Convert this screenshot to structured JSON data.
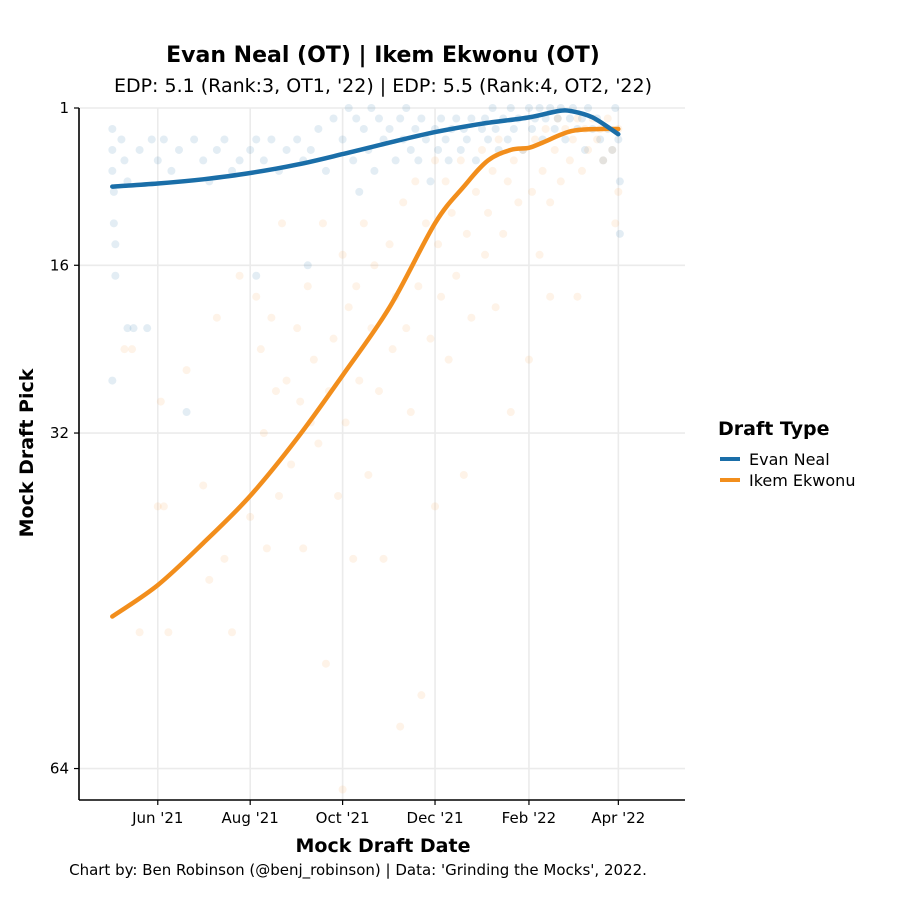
{
  "chart_data": {
    "type": "scatter",
    "title": "Evan Neal (OT) | Ikem Ekwonu (OT)",
    "subtitle": "EDP: 5.1 (Rank:3, OT1, '22) | EDP: 5.5 (Rank:4, OT2, '22)",
    "xlabel": "Mock Draft Date",
    "ylabel": "Mock Draft Pick",
    "caption": "Chart by: Ben Robinson (@benj_robinson) | Data: 'Grinding the Mocks', 2022.",
    "x_domain": [
      "2021-04-10",
      "2022-05-15"
    ],
    "ylim": [
      1,
      67
    ],
    "y_reversed": true,
    "grid": true,
    "x_ticks": [
      {
        "date": "2021-06-01",
        "label": "Jun '21"
      },
      {
        "date": "2021-08-01",
        "label": "Aug '21"
      },
      {
        "date": "2021-10-01",
        "label": "Oct '21"
      },
      {
        "date": "2021-12-01",
        "label": "Dec '21"
      },
      {
        "date": "2022-02-01",
        "label": "Feb '22"
      },
      {
        "date": "2022-04-01",
        "label": "Apr '22"
      }
    ],
    "y_ticks": [
      {
        "value": 1,
        "label": "1"
      },
      {
        "value": 16,
        "label": "16"
      },
      {
        "value": 32,
        "label": "32"
      },
      {
        "value": 64,
        "label": "64"
      }
    ],
    "legend": {
      "title": "Draft Type",
      "position": "right",
      "entries": [
        "Evan Neal",
        "Ikem Ekwonu"
      ]
    },
    "series": [
      {
        "name": "Evan Neal",
        "color": "#1a6ea8",
        "point_opacity": 0.12,
        "trend": [
          [
            "2021-05-02",
            8.5
          ],
          [
            "2021-06-01",
            8.2
          ],
          [
            "2021-07-01",
            7.8
          ],
          [
            "2021-08-01",
            7.2
          ],
          [
            "2021-09-01",
            6.4
          ],
          [
            "2021-10-01",
            5.4
          ],
          [
            "2021-11-01",
            4.3
          ],
          [
            "2021-12-01",
            3.3
          ],
          [
            "2022-01-01",
            2.5
          ],
          [
            "2022-02-01",
            1.9
          ],
          [
            "2022-02-20",
            1.3
          ],
          [
            "2022-03-01",
            1.3
          ],
          [
            "2022-03-15",
            1.9
          ],
          [
            "2022-04-01",
            3.5
          ]
        ],
        "points": [
          [
            "2021-05-02",
            3
          ],
          [
            "2021-05-02",
            5
          ],
          [
            "2021-05-02",
            7
          ],
          [
            "2021-05-03",
            9
          ],
          [
            "2021-05-03",
            12
          ],
          [
            "2021-05-04",
            14
          ],
          [
            "2021-05-04",
            17
          ],
          [
            "2021-05-02",
            27
          ],
          [
            "2021-05-08",
            4
          ],
          [
            "2021-05-10",
            6
          ],
          [
            "2021-05-12",
            8
          ],
          [
            "2021-05-12",
            22
          ],
          [
            "2021-05-16",
            22
          ],
          [
            "2021-05-20",
            5
          ],
          [
            "2021-05-25",
            22
          ],
          [
            "2021-05-28",
            4
          ],
          [
            "2021-06-01",
            6
          ],
          [
            "2021-06-05",
            4
          ],
          [
            "2021-06-10",
            7
          ],
          [
            "2021-06-15",
            5
          ],
          [
            "2021-06-20",
            30
          ],
          [
            "2021-06-25",
            4
          ],
          [
            "2021-07-01",
            6
          ],
          [
            "2021-07-05",
            8
          ],
          [
            "2021-07-10",
            5
          ],
          [
            "2021-07-15",
            4
          ],
          [
            "2021-07-20",
            7
          ],
          [
            "2021-07-25",
            6
          ],
          [
            "2021-08-01",
            5
          ],
          [
            "2021-08-05",
            4
          ],
          [
            "2021-08-05",
            17
          ],
          [
            "2021-08-10",
            6
          ],
          [
            "2021-08-15",
            4
          ],
          [
            "2021-08-20",
            7
          ],
          [
            "2021-08-25",
            5
          ],
          [
            "2021-09-01",
            4
          ],
          [
            "2021-09-05",
            6
          ],
          [
            "2021-09-08",
            16
          ],
          [
            "2021-09-10",
            5
          ],
          [
            "2021-09-15",
            3
          ],
          [
            "2021-09-20",
            7
          ],
          [
            "2021-09-25",
            2
          ],
          [
            "2021-10-01",
            4
          ],
          [
            "2021-10-05",
            1
          ],
          [
            "2021-10-08",
            6
          ],
          [
            "2021-10-10",
            2
          ],
          [
            "2021-10-12",
            9
          ],
          [
            "2021-10-15",
            3
          ],
          [
            "2021-10-18",
            5
          ],
          [
            "2021-10-20",
            1
          ],
          [
            "2021-10-22",
            7
          ],
          [
            "2021-10-25",
            2
          ],
          [
            "2021-10-28",
            4
          ],
          [
            "2021-11-01",
            3
          ],
          [
            "2021-11-05",
            6
          ],
          [
            "2021-11-08",
            2
          ],
          [
            "2021-11-10",
            4
          ],
          [
            "2021-11-12",
            1
          ],
          [
            "2021-11-15",
            5
          ],
          [
            "2021-11-18",
            3
          ],
          [
            "2021-11-20",
            6
          ],
          [
            "2021-11-22",
            2
          ],
          [
            "2021-11-25",
            4
          ],
          [
            "2021-11-28",
            8
          ],
          [
            "2021-12-01",
            3
          ],
          [
            "2021-12-03",
            5
          ],
          [
            "2021-12-05",
            2
          ],
          [
            "2021-12-08",
            4
          ],
          [
            "2021-12-10",
            6
          ],
          [
            "2021-12-12",
            3
          ],
          [
            "2021-12-15",
            2
          ],
          [
            "2021-12-18",
            5
          ],
          [
            "2021-12-20",
            3
          ],
          [
            "2021-12-22",
            4
          ],
          [
            "2021-12-25",
            2
          ],
          [
            "2021-12-28",
            6
          ],
          [
            "2022-01-01",
            3
          ],
          [
            "2022-01-03",
            2
          ],
          [
            "2022-01-05",
            4
          ],
          [
            "2022-01-08",
            1
          ],
          [
            "2022-01-10",
            3
          ],
          [
            "2022-01-12",
            5
          ],
          [
            "2022-01-15",
            2
          ],
          [
            "2022-01-18",
            4
          ],
          [
            "2022-01-20",
            1
          ],
          [
            "2022-01-22",
            3
          ],
          [
            "2022-01-25",
            2
          ],
          [
            "2022-01-28",
            5
          ],
          [
            "2022-02-01",
            1
          ],
          [
            "2022-02-03",
            3
          ],
          [
            "2022-02-05",
            2
          ],
          [
            "2022-02-08",
            1
          ],
          [
            "2022-02-10",
            4
          ],
          [
            "2022-02-12",
            2
          ],
          [
            "2022-02-15",
            1
          ],
          [
            "2022-02-18",
            3
          ],
          [
            "2022-02-20",
            2
          ],
          [
            "2022-02-22",
            1
          ],
          [
            "2022-02-25",
            4
          ],
          [
            "2022-02-28",
            2
          ],
          [
            "2022-03-02",
            1
          ],
          [
            "2022-03-05",
            3
          ],
          [
            "2022-03-08",
            2
          ],
          [
            "2022-03-10",
            5
          ],
          [
            "2022-03-12",
            1
          ],
          [
            "2022-03-15",
            3
          ],
          [
            "2022-03-18",
            2
          ],
          [
            "2022-03-20",
            4
          ],
          [
            "2022-03-22",
            6
          ],
          [
            "2022-03-25",
            3
          ],
          [
            "2022-03-28",
            5
          ],
          [
            "2022-03-30",
            1
          ],
          [
            "2022-04-01",
            4
          ],
          [
            "2022-04-02",
            13
          ],
          [
            "2022-04-02",
            8
          ]
        ]
      },
      {
        "name": "Ikem Ekwonu",
        "color": "#f28e1c",
        "point_opacity": 0.1,
        "trend": [
          [
            "2021-05-02",
            49.5
          ],
          [
            "2021-06-01",
            46.5
          ],
          [
            "2021-07-01",
            42.5
          ],
          [
            "2021-08-01",
            38.0
          ],
          [
            "2021-09-01",
            32.5
          ],
          [
            "2021-10-01",
            26.5
          ],
          [
            "2021-11-01",
            20.0
          ],
          [
            "2021-12-01",
            12.0
          ],
          [
            "2021-12-20",
            8.5
          ],
          [
            "2022-01-05",
            6.0
          ],
          [
            "2022-01-20",
            5.0
          ],
          [
            "2022-02-01",
            4.8
          ],
          [
            "2022-02-10",
            4.3
          ],
          [
            "2022-03-01",
            3.2
          ],
          [
            "2022-03-20",
            3.0
          ],
          [
            "2022-04-01",
            3.0
          ]
        ],
        "points": [
          [
            "2021-05-10",
            24
          ],
          [
            "2021-05-15",
            24
          ],
          [
            "2021-05-20",
            51
          ],
          [
            "2021-06-01",
            39
          ],
          [
            "2021-06-03",
            29
          ],
          [
            "2021-06-05",
            39
          ],
          [
            "2021-06-08",
            51
          ],
          [
            "2021-06-20",
            26
          ],
          [
            "2021-07-01",
            37
          ],
          [
            "2021-07-05",
            46
          ],
          [
            "2021-07-10",
            21
          ],
          [
            "2021-07-15",
            44
          ],
          [
            "2021-07-20",
            51
          ],
          [
            "2021-07-25",
            17
          ],
          [
            "2021-08-01",
            40
          ],
          [
            "2021-08-05",
            19
          ],
          [
            "2021-08-08",
            24
          ],
          [
            "2021-08-10",
            32
          ],
          [
            "2021-08-12",
            43
          ],
          [
            "2021-08-15",
            21
          ],
          [
            "2021-08-18",
            28
          ],
          [
            "2021-08-20",
            38
          ],
          [
            "2021-08-22",
            12
          ],
          [
            "2021-08-25",
            27
          ],
          [
            "2021-08-28",
            35
          ],
          [
            "2021-09-01",
            22
          ],
          [
            "2021-09-03",
            29
          ],
          [
            "2021-09-05",
            43
          ],
          [
            "2021-09-08",
            18
          ],
          [
            "2021-09-10",
            31
          ],
          [
            "2021-09-12",
            25
          ],
          [
            "2021-09-15",
            33
          ],
          [
            "2021-09-18",
            12
          ],
          [
            "2021-09-20",
            54
          ],
          [
            "2021-09-22",
            28
          ],
          [
            "2021-09-25",
            23
          ],
          [
            "2021-09-28",
            38
          ],
          [
            "2021-10-01",
            66
          ],
          [
            "2021-10-01",
            15
          ],
          [
            "2021-10-03",
            31
          ],
          [
            "2021-10-05",
            20
          ],
          [
            "2021-10-08",
            44
          ],
          [
            "2021-10-10",
            18
          ],
          [
            "2021-10-12",
            27
          ],
          [
            "2021-10-15",
            12
          ],
          [
            "2021-10-18",
            36
          ],
          [
            "2021-10-20",
            22
          ],
          [
            "2021-10-22",
            16
          ],
          [
            "2021-10-25",
            28
          ],
          [
            "2021-10-28",
            44
          ],
          [
            "2021-11-01",
            14
          ],
          [
            "2021-11-03",
            24
          ],
          [
            "2021-11-05",
            19
          ],
          [
            "2021-11-08",
            60
          ],
          [
            "2021-11-10",
            10
          ],
          [
            "2021-11-12",
            22
          ],
          [
            "2021-11-15",
            30
          ],
          [
            "2021-11-18",
            8
          ],
          [
            "2021-11-20",
            18
          ],
          [
            "2021-11-22",
            57
          ],
          [
            "2021-11-25",
            12
          ],
          [
            "2021-11-28",
            23
          ],
          [
            "2021-12-01",
            39
          ],
          [
            "2021-12-01",
            6
          ],
          [
            "2021-12-03",
            14
          ],
          [
            "2021-12-05",
            19
          ],
          [
            "2021-12-08",
            8
          ],
          [
            "2021-12-10",
            25
          ],
          [
            "2021-12-12",
            11
          ],
          [
            "2021-12-15",
            17
          ],
          [
            "2021-12-18",
            6
          ],
          [
            "2021-12-20",
            36
          ],
          [
            "2021-12-22",
            13
          ],
          [
            "2021-12-25",
            21
          ],
          [
            "2021-12-28",
            9
          ],
          [
            "2022-01-01",
            5
          ],
          [
            "2022-01-03",
            15
          ],
          [
            "2022-01-05",
            11
          ],
          [
            "2022-01-08",
            7
          ],
          [
            "2022-01-10",
            20
          ],
          [
            "2022-01-12",
            4
          ],
          [
            "2022-01-15",
            13
          ],
          [
            "2022-01-18",
            8
          ],
          [
            "2022-01-20",
            30
          ],
          [
            "2022-01-22",
            6
          ],
          [
            "2022-01-25",
            10
          ],
          [
            "2022-01-28",
            5
          ],
          [
            "2022-02-01",
            25
          ],
          [
            "2022-02-03",
            9
          ],
          [
            "2022-02-05",
            4
          ],
          [
            "2022-02-08",
            15
          ],
          [
            "2022-02-10",
            7
          ],
          [
            "2022-02-12",
            3
          ],
          [
            "2022-02-15",
            10
          ],
          [
            "2022-02-18",
            5
          ],
          [
            "2022-02-20",
            2
          ],
          [
            "2022-02-22",
            8
          ],
          [
            "2022-02-25",
            3
          ],
          [
            "2022-02-28",
            6
          ],
          [
            "2022-03-02",
            4
          ],
          [
            "2022-03-05",
            2
          ],
          [
            "2022-03-08",
            7
          ],
          [
            "2022-03-10",
            3
          ],
          [
            "2022-03-12",
            5
          ],
          [
            "2022-03-15",
            2
          ],
          [
            "2022-03-18",
            4
          ],
          [
            "2022-03-20",
            3
          ],
          [
            "2022-03-22",
            6
          ],
          [
            "2022-03-25",
            2
          ],
          [
            "2022-03-28",
            5
          ],
          [
            "2022-04-01",
            3
          ],
          [
            "2022-04-01",
            9
          ],
          [
            "2022-03-05",
            19
          ],
          [
            "2022-02-15",
            19
          ],
          [
            "2022-03-30",
            12
          ]
        ]
      }
    ]
  }
}
